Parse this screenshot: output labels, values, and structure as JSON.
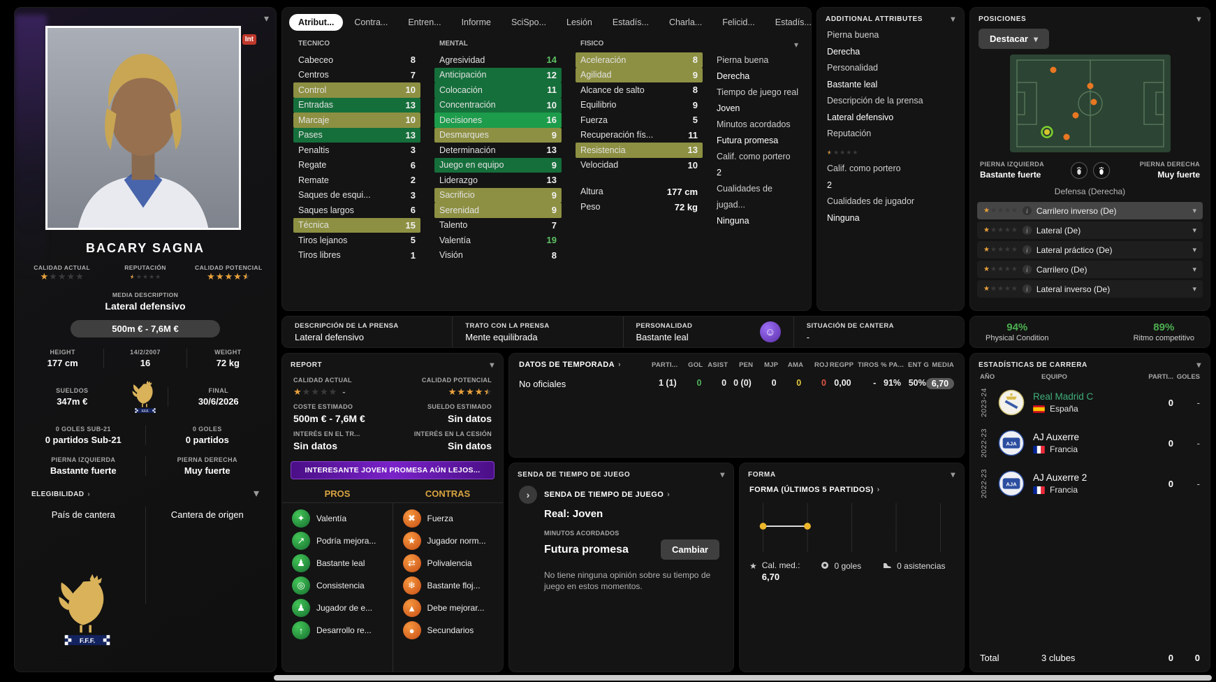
{
  "colors": {
    "accent_gold": "#e9a13b",
    "highlight_green": "#156f3b",
    "highlight_green_bright": "#1d9c4b",
    "highlight_olive": "#8d9042",
    "value_green": "#5dc264",
    "banner_purple": "#7a22c9",
    "team_link_green": "#3fae7a",
    "condition_green": "#4caf50"
  },
  "player": {
    "name": "BACARY SAGNA",
    "int_badge": "Int",
    "current_ability_label": "CALIDAD ACTUAL",
    "current_ability_stars": 1,
    "reputation_label": "REPUTACIÓN",
    "reputation_stars": 0.5,
    "potential_ability_label": "CALIDAD POTENCIAL",
    "potential_ability_stars": 4.5,
    "media_description_label": "MEDIA DESCRIPTION",
    "media_description": "Lateral defensivo",
    "value_pill": "500m € - 7,6M €",
    "height_label": "HEIGHT",
    "height": "177 cm",
    "birth_date": "14/2/2007",
    "age": "16",
    "weight_label": "WEIGHT",
    "weight": "72 kg",
    "wage_label": "SUELDOS",
    "wage": "347m €",
    "contract_label": "FINAL",
    "contract_end": "30/6/2026",
    "u21_goals_label": "0 GOLES SUB-21",
    "u21_apps": "0 partidos Sub-21",
    "intl_goals_label": "0 GOLES",
    "intl_apps": "0 partidos",
    "left_foot_label": "PIERNA IZQUIERDA",
    "left_foot": "Bastante fuerte",
    "right_foot_label": "PIERNA DERECHA",
    "right_foot": "Muy fuerte",
    "eligibility_label": "ELEGIBILIDAD",
    "nation_label": "País de cantera",
    "youth_label": "Cantera de origen"
  },
  "tabs": [
    {
      "label": "Atribut...",
      "active": true
    },
    {
      "label": "Contra..."
    },
    {
      "label": "Entren..."
    },
    {
      "label": "Informe"
    },
    {
      "label": "SciSpo..."
    },
    {
      "label": "Lesión"
    },
    {
      "label": "Estadís..."
    },
    {
      "label": "Charla..."
    },
    {
      "label": "Felicid..."
    },
    {
      "label": "Estadís..."
    }
  ],
  "attributes": {
    "technical_label": "TECNICO",
    "mental_label": "MENTAL",
    "physical_label": "FISICO",
    "technical": [
      {
        "label": "Cabeceo",
        "value": 8
      },
      {
        "label": "Centros",
        "value": 7
      },
      {
        "label": "Control",
        "value": 10,
        "hl": "olive"
      },
      {
        "label": "Entradas",
        "value": 13,
        "hl": "green"
      },
      {
        "label": "Marcaje",
        "value": 10,
        "hl": "olive"
      },
      {
        "label": "Pases",
        "value": 13,
        "hl": "green"
      },
      {
        "label": "Penaltis",
        "value": 3
      },
      {
        "label": "Regate",
        "value": 6
      },
      {
        "label": "Remate",
        "value": 2
      },
      {
        "label": "Saques de esqui...",
        "value": 3
      },
      {
        "label": "Saques largos",
        "value": 6
      },
      {
        "label": "Técnica",
        "value": 15,
        "hl": "olive"
      },
      {
        "label": "Tiros lejanos",
        "value": 5
      },
      {
        "label": "Tiros libres",
        "value": 1
      }
    ],
    "mental": [
      {
        "label": "Agresividad",
        "value": 14
      },
      {
        "label": "Anticipación",
        "value": 12,
        "hl": "green"
      },
      {
        "label": "Colocación",
        "value": 11,
        "hl": "green"
      },
      {
        "label": "Concentración",
        "value": 10,
        "hl": "green"
      },
      {
        "label": "Decisiones",
        "value": 16,
        "hl": "green-bright"
      },
      {
        "label": "Desmarques",
        "value": 9,
        "hl": "olive"
      },
      {
        "label": "Determinación",
        "value": 13
      },
      {
        "label": "Juego en equipo",
        "value": 9,
        "hl": "green"
      },
      {
        "label": "Liderazgo",
        "value": 13
      },
      {
        "label": "Sacrificio",
        "value": 9,
        "hl": "olive"
      },
      {
        "label": "Serenidad",
        "value": 9,
        "hl": "olive"
      },
      {
        "label": "Talento",
        "value": 7
      },
      {
        "label": "Valentía",
        "value": 19
      },
      {
        "label": "Visión",
        "value": 8
      }
    ],
    "physical": [
      {
        "label": "Aceleración",
        "value": 8,
        "hl": "olive"
      },
      {
        "label": "Agilidad",
        "value": 9,
        "hl": "olive"
      },
      {
        "label": "Alcance de salto",
        "value": 8
      },
      {
        "label": "Equilibrio",
        "value": 9
      },
      {
        "label": "Fuerza",
        "value": 5
      },
      {
        "label": "Recuperación fís...",
        "value": 11
      },
      {
        "label": "Resistencia",
        "value": 13,
        "hl": "olive"
      },
      {
        "label": "Velocidad",
        "value": 10
      }
    ],
    "altura_label": "Altura",
    "altura": "177 cm",
    "peso_label": "Peso",
    "peso": "72 kg",
    "side_info": [
      {
        "label": "Pierna buena",
        "value": "Derecha"
      },
      {
        "label": "Tiempo de juego real",
        "value": "Joven"
      },
      {
        "label": "Minutos acordados",
        "value": "Futura promesa"
      },
      {
        "label": "Calif. como portero",
        "value": "2"
      },
      {
        "label": "Cualidades de jugad...",
        "value": "Ninguna"
      }
    ]
  },
  "additional_attributes": {
    "title": "ADDITIONAL ATTRIBUTES",
    "items": [
      {
        "label": "Pierna buena",
        "value": "Derecha"
      },
      {
        "label": "Personalidad",
        "value": "Bastante leal"
      },
      {
        "label": "Descripción de la prensa",
        "value": "Lateral defensivo"
      },
      {
        "label": "Reputación",
        "value": "",
        "star": true
      },
      {
        "label": "Calif. como portero",
        "value": "2"
      },
      {
        "label": "Cualidades de jugador",
        "value": "Ninguna"
      }
    ]
  },
  "positions": {
    "title": "POSICIONES",
    "highlight_button": "Destacar",
    "left_foot_label": "PIERNA IZQUIERDA",
    "left_foot": "Bastante fuerte",
    "right_foot_label": "PIERNA DERECHA",
    "right_foot": "Muy fuerte",
    "position_line": "Defensa (Derecha)",
    "roles": [
      {
        "label": "Carrilero inverso (De)",
        "stars": 1,
        "selected": true
      },
      {
        "label": "Lateral (De)",
        "stars": 1
      },
      {
        "label": "Lateral práctico (De)",
        "stars": 1
      },
      {
        "label": "Carrilero (De)",
        "stars": 1
      },
      {
        "label": "Lateral inverso (De)",
        "stars": 1
      }
    ]
  },
  "condition": {
    "physical_pct": "94%",
    "physical_label": "Physical Condition",
    "sharpness_pct": "89%",
    "sharpness_label": "Ritmo competitivo"
  },
  "info_strip": [
    {
      "title": "DESCRIPCIÓN DE LA PRENSA",
      "value": "Lateral defensivo"
    },
    {
      "title": "TRATO CON LA PRENSA",
      "value": "Mente equilibrada"
    },
    {
      "title": "PERSONALIDAD",
      "value": "Bastante leal",
      "icon": "personality-icon"
    },
    {
      "title": "SITUACIÓN DE CANTERA",
      "value": "-"
    }
  ],
  "report": {
    "title": "REPORT",
    "current_label": "CALIDAD ACTUAL",
    "current_stars": 1,
    "range_dash": "-",
    "potential_label": "CALIDAD POTENCIAL",
    "potential_stars": 4.5,
    "cost_label": "COSTE ESTIMADO",
    "cost": "500m € - 7,6M €",
    "wage_label": "SUELDO ESTIMADO",
    "wage": "Sin datos",
    "transfer_label": "INTERÉS EN EL TR...",
    "transfer": "Sin datos",
    "loan_label": "INTERÉS EN LA CESIÓN",
    "loan": "Sin datos",
    "banner": "INTERESANTE JOVEN PROMESA AÚN LEJOS...",
    "pros_label": "PROS",
    "cons_label": "CONTRAS",
    "pros": [
      {
        "label": "Valentía",
        "icon": "bravery-icon",
        "glyph": "✦"
      },
      {
        "label": "Podría mejora...",
        "icon": "improvement-icon",
        "glyph": "↗"
      },
      {
        "label": "Bastante leal",
        "icon": "loyalty-icon",
        "glyph": "♟"
      },
      {
        "label": "Consistencia",
        "icon": "consistency-icon",
        "glyph": "◎"
      },
      {
        "label": "Jugador de e...",
        "icon": "team-player-icon",
        "glyph": "♟"
      },
      {
        "label": "Desarrollo re...",
        "icon": "development-icon",
        "glyph": "↑"
      }
    ],
    "cons": [
      {
        "label": "Fuerza",
        "icon": "strength-icon",
        "glyph": "✖"
      },
      {
        "label": "Jugador norm...",
        "icon": "average-player-icon",
        "glyph": "★"
      },
      {
        "label": "Polivalencia",
        "icon": "versatility-icon",
        "glyph": "⇄"
      },
      {
        "label": "Bastante floj...",
        "icon": "weakness-icon",
        "glyph": "❄"
      },
      {
        "label": "Debe mejorar...",
        "icon": "must-improve-icon",
        "glyph": "▲"
      },
      {
        "label": "Secundarios",
        "icon": "secondary-icon",
        "glyph": "●"
      }
    ]
  },
  "season_stats": {
    "title": "DATOS DE TEMPORADA",
    "headers": [
      "PARTI...",
      "GOL",
      "ASIST",
      "PEN",
      "MJP",
      "AMA",
      "ROJ",
      "REGPP",
      "TIROS",
      "% PA...",
      "ENT G",
      "MEDIA"
    ],
    "row_label": "No oficiales",
    "values": [
      {
        "text": "1 (1)"
      },
      {
        "text": "0",
        "color": "green"
      },
      {
        "text": "0"
      },
      {
        "text": "0 (0)"
      },
      {
        "text": "0"
      },
      {
        "text": "0",
        "color": "yellow"
      },
      {
        "text": "0",
        "color": "red"
      },
      {
        "text": "0,00"
      },
      {
        "text": "-"
      },
      {
        "text": "91%"
      },
      {
        "text": "50%"
      },
      {
        "text": "6,70",
        "badge": true
      }
    ]
  },
  "playing_time": {
    "title": "SENDA DE TIEMPO DE JUEGO",
    "link": "SENDA DE TIEMPO DE JUEGO",
    "real": "Real: Joven",
    "agreed_label": "MINUTOS ACORDADOS",
    "agreed": "Futura promesa",
    "change_button": "Cambiar",
    "note": "No tiene ninguna opinión sobre su tiempo de juego en estos momentos."
  },
  "form": {
    "title": "FORMA",
    "link": "FORMA (ÚLTIMOS 5 PARTIDOS)",
    "avg_label": "Cal. med.:",
    "avg": "6,70",
    "goals": "0 goles",
    "assists": "0 asistencias"
  },
  "career_stats": {
    "title": "ESTADÍSTICAS DE CARRERA",
    "col_year": "AÑO",
    "col_team": "EQUIPO",
    "col_apps": "PARTI...",
    "col_goals": "GOLES",
    "rows": [
      {
        "year": "2023-24",
        "team": "Real Madrid C",
        "nation": "España",
        "apps": "0",
        "goals": "-",
        "link": true,
        "crest": "real-madrid",
        "flag": "es"
      },
      {
        "year": "2022-23",
        "team": "AJ Auxerre",
        "nation": "Francia",
        "apps": "0",
        "goals": "-",
        "crest": "auxerre",
        "flag": "fr"
      },
      {
        "year": "2022-23",
        "team": "AJ Auxerre 2",
        "nation": "Francia",
        "apps": "0",
        "goals": "-",
        "crest": "auxerre",
        "flag": "fr"
      }
    ],
    "total_label": "Total",
    "total_clubs": "3 clubes",
    "total_apps": "0",
    "total_goals": "0"
  }
}
